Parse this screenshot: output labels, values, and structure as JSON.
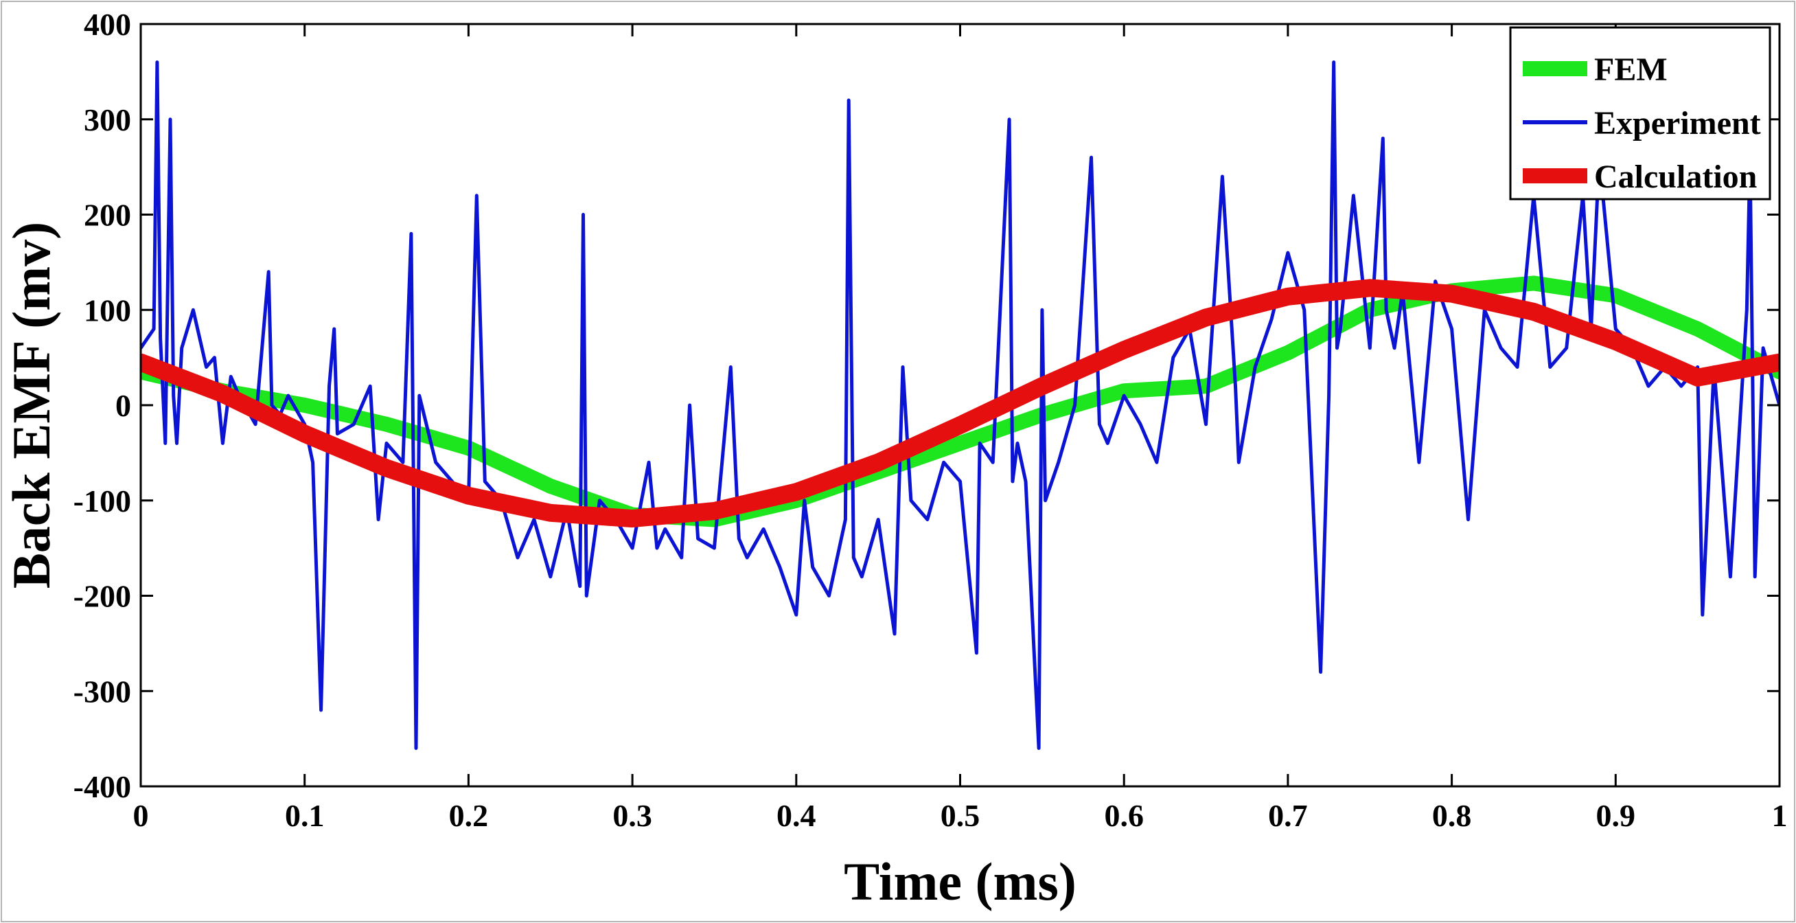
{
  "chart_data": {
    "type": "line",
    "title": "",
    "xlabel": "Time (ms)",
    "ylabel": "Back EMF (mv)",
    "xlim": [
      0,
      1
    ],
    "ylim": [
      -400,
      400
    ],
    "xticks": [
      0,
      0.1,
      0.2,
      0.3,
      0.4,
      0.5,
      0.6,
      0.7,
      0.8,
      0.9,
      1
    ],
    "xtick_labels": [
      "0",
      "0.1",
      "0.2",
      "0.3",
      "0.4",
      "0.5",
      "0.6",
      "0.7",
      "0.8",
      "0.9",
      "1"
    ],
    "yticks": [
      400,
      300,
      200,
      100,
      0,
      -100,
      -200,
      -300,
      -400
    ],
    "ytick_labels": [
      "400",
      "300",
      "200",
      "100",
      "0",
      "-100",
      "-200",
      "-300",
      "-400"
    ],
    "legend_position": "top-right",
    "series": [
      {
        "name": "FEM",
        "color": "#1ee61e",
        "x": [
          0,
          0.05,
          0.1,
          0.15,
          0.2,
          0.25,
          0.3,
          0.35,
          0.4,
          0.45,
          0.5,
          0.55,
          0.6,
          0.65,
          0.7,
          0.75,
          0.8,
          0.85,
          0.9,
          0.95,
          1
        ],
        "y": [
          35,
          15,
          0,
          -20,
          -45,
          -85,
          -115,
          -120,
          -100,
          -70,
          -40,
          -10,
          15,
          20,
          55,
          100,
          120,
          128,
          115,
          80,
          35
        ]
      },
      {
        "name": "Experiment",
        "color": "#0a14d2",
        "x": [
          0,
          0.008,
          0.01,
          0.012,
          0.015,
          0.018,
          0.02,
          0.022,
          0.025,
          0.032,
          0.04,
          0.045,
          0.05,
          0.055,
          0.06,
          0.07,
          0.078,
          0.08,
          0.085,
          0.09,
          0.1,
          0.105,
          0.11,
          0.115,
          0.118,
          0.12,
          0.13,
          0.14,
          0.145,
          0.15,
          0.16,
          0.165,
          0.168,
          0.17,
          0.18,
          0.19,
          0.2,
          0.205,
          0.21,
          0.22,
          0.23,
          0.24,
          0.25,
          0.26,
          0.268,
          0.27,
          0.272,
          0.28,
          0.29,
          0.3,
          0.31,
          0.315,
          0.32,
          0.33,
          0.335,
          0.34,
          0.35,
          0.36,
          0.365,
          0.37,
          0.38,
          0.39,
          0.4,
          0.405,
          0.41,
          0.42,
          0.43,
          0.432,
          0.435,
          0.44,
          0.45,
          0.46,
          0.465,
          0.47,
          0.48,
          0.49,
          0.5,
          0.51,
          0.512,
          0.52,
          0.53,
          0.532,
          0.535,
          0.54,
          0.548,
          0.55,
          0.552,
          0.56,
          0.57,
          0.58,
          0.585,
          0.59,
          0.6,
          0.61,
          0.62,
          0.63,
          0.64,
          0.65,
          0.66,
          0.668,
          0.67,
          0.68,
          0.69,
          0.7,
          0.71,
          0.72,
          0.725,
          0.728,
          0.73,
          0.732,
          0.74,
          0.75,
          0.758,
          0.76,
          0.765,
          0.77,
          0.78,
          0.79,
          0.8,
          0.81,
          0.82,
          0.825,
          0.83,
          0.84,
          0.85,
          0.86,
          0.87,
          0.88,
          0.885,
          0.89,
          0.9,
          0.91,
          0.92,
          0.93,
          0.94,
          0.95,
          0.953,
          0.96,
          0.97,
          0.98,
          0.982,
          0.985,
          0.99,
          1
        ],
        "y": [
          60,
          80,
          360,
          70,
          -40,
          300,
          10,
          -40,
          60,
          100,
          40,
          50,
          -40,
          30,
          10,
          -20,
          140,
          0,
          -10,
          10,
          -20,
          -60,
          -320,
          20,
          80,
          -30,
          -20,
          20,
          -120,
          -40,
          -60,
          180,
          -360,
          10,
          -60,
          -80,
          -100,
          220,
          -80,
          -100,
          -160,
          -120,
          -180,
          -110,
          -190,
          200,
          -200,
          -100,
          -120,
          -150,
          -60,
          -150,
          -130,
          -160,
          0,
          -140,
          -150,
          40,
          -140,
          -160,
          -130,
          -170,
          -220,
          -100,
          -170,
          -200,
          -120,
          320,
          -160,
          -180,
          -120,
          -240,
          40,
          -100,
          -120,
          -60,
          -80,
          -260,
          -40,
          -60,
          300,
          -80,
          -40,
          -80,
          -360,
          100,
          -100,
          -60,
          0,
          260,
          -20,
          -40,
          10,
          -20,
          -60,
          50,
          80,
          -20,
          240,
          20,
          -60,
          40,
          90,
          160,
          100,
          -280,
          10,
          360,
          60,
          80,
          220,
          60,
          280,
          100,
          60,
          120,
          -60,
          130,
          80,
          -120,
          100,
          80,
          60,
          40,
          220,
          40,
          60,
          220,
          80,
          260,
          80,
          60,
          20,
          40,
          20,
          40,
          -220,
          40,
          -180,
          100,
          260,
          -180,
          60,
          0
        ]
      },
      {
        "name": "Calculation",
        "color": "#e60f0f",
        "x": [
          0,
          0.05,
          0.1,
          0.15,
          0.2,
          0.25,
          0.3,
          0.35,
          0.4,
          0.45,
          0.5,
          0.55,
          0.6,
          0.65,
          0.7,
          0.75,
          0.8,
          0.85,
          0.9,
          0.95,
          1
        ],
        "y": [
          45,
          12,
          -30,
          -66,
          -95,
          -113,
          -119,
          -111,
          -91,
          -60,
          -21,
          20,
          58,
          92,
          114,
          123,
          117,
          98,
          67,
          29,
          45
        ]
      }
    ]
  }
}
